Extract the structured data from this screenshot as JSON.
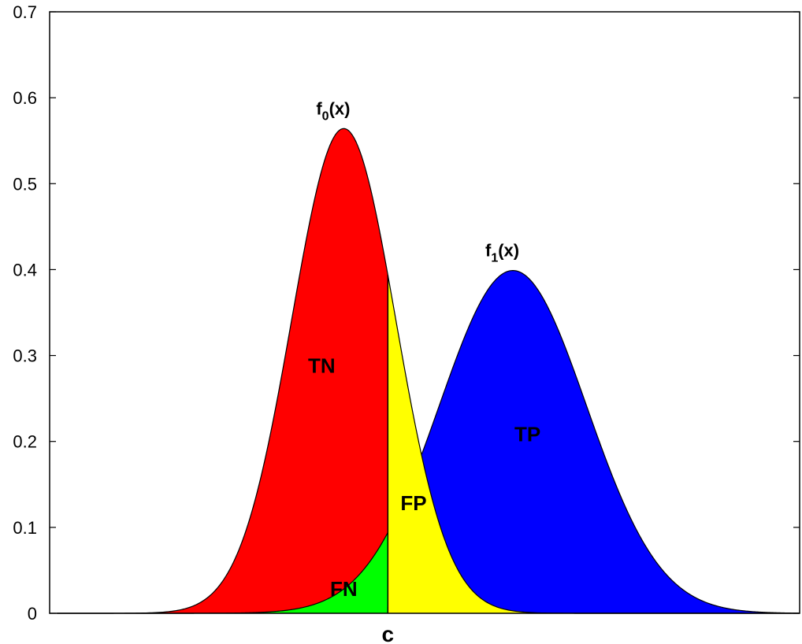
{
  "chart_data": {
    "type": "area",
    "title": "",
    "xlabel": "",
    "ylabel": "",
    "ylim": [
      0,
      0.7
    ],
    "xlim": [
      -3.2,
      7.0
    ],
    "yticks": [
      {
        "value": 0,
        "label": "0"
      },
      {
        "value": 0.1,
        "label": "0.1"
      },
      {
        "value": 0.2,
        "label": "0.2"
      },
      {
        "value": 0.3,
        "label": "0.3"
      },
      {
        "value": 0.4,
        "label": "0.4"
      },
      {
        "value": 0.5,
        "label": "0.5"
      },
      {
        "value": 0.6,
        "label": "0.6"
      },
      {
        "value": 0.7,
        "label": "0.7"
      }
    ],
    "grid": false,
    "series": [
      {
        "name": "f0(x)",
        "label_main": "f",
        "label_sub": "0",
        "label_tail": "(x)",
        "mean": 0.8,
        "sd": 0.7071,
        "peak": 0.564
      },
      {
        "name": "f1(x)",
        "label_main": "f",
        "label_sub": "1",
        "label_tail": "(x)",
        "mean": 3.1,
        "sd": 1.0,
        "peak": 0.399
      }
    ],
    "cutoff": {
      "x": 1.4,
      "label": "c"
    },
    "regions": [
      {
        "name": "TN",
        "label": "TN",
        "color": "#ff0000",
        "label_x": 0.5,
        "label_y": 0.28
      },
      {
        "name": "FN",
        "label": "FN",
        "color": "#00ff00",
        "label_x": 0.8,
        "label_y": 0.02
      },
      {
        "name": "FP",
        "label": "FP",
        "color": "#ffff00",
        "label_x": 1.75,
        "label_y": 0.12
      },
      {
        "name": "TP",
        "label": "TP",
        "color": "#0000ff",
        "label_x": 3.3,
        "label_y": 0.2
      }
    ]
  }
}
